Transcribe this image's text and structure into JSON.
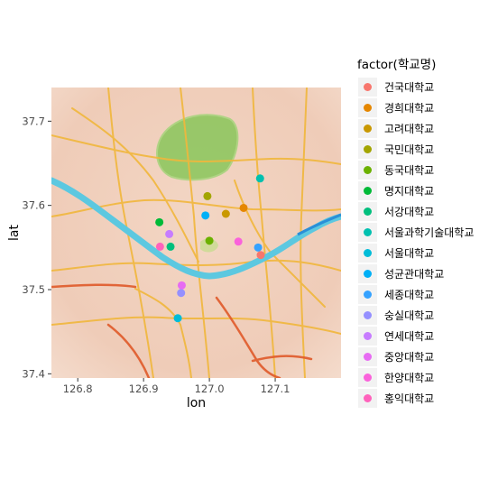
{
  "chart_data": {
    "type": "scatter",
    "basemap": "watercolor",
    "xlabel": "lon",
    "ylabel": "lat",
    "xlim": [
      126.76,
      127.2
    ],
    "ylim": [
      37.395,
      37.74
    ],
    "x_ticks": [
      126.8,
      126.9,
      127.0,
      127.1
    ],
    "x_tick_labels": [
      "126.8",
      "126.9",
      "127.0",
      "127.1"
    ],
    "y_ticks": [
      37.4,
      37.5,
      37.6,
      37.7
    ],
    "y_tick_labels": [
      "37.4",
      "37.5",
      "37.6",
      "37.7"
    ],
    "legend": {
      "title": "factor(학교명)",
      "position": "right"
    },
    "series": [
      {
        "name": "건국대학교",
        "color": "#F8766D",
        "x": 127.078,
        "y": 37.541
      },
      {
        "name": "경희대학교",
        "color": "#E58700",
        "x": 127.052,
        "y": 37.597
      },
      {
        "name": "고려대학교",
        "color": "#C99800",
        "x": 127.025,
        "y": 37.59
      },
      {
        "name": "국민대학교",
        "color": "#A3A500",
        "x": 126.997,
        "y": 37.611
      },
      {
        "name": "동국대학교",
        "color": "#6BB100",
        "x": 127.0,
        "y": 37.558
      },
      {
        "name": "명지대학교",
        "color": "#00BA38",
        "x": 126.924,
        "y": 37.58
      },
      {
        "name": "서강대학교",
        "color": "#00BF7D",
        "x": 126.941,
        "y": 37.551
      },
      {
        "name": "서울과학기술대학교",
        "color": "#00C0AF",
        "x": 127.077,
        "y": 37.632
      },
      {
        "name": "서울대학교",
        "color": "#00BCD8",
        "x": 126.952,
        "y": 37.466
      },
      {
        "name": "성균관대학교",
        "color": "#00B0F6",
        "x": 126.994,
        "y": 37.588
      },
      {
        "name": "세종대학교",
        "color": "#35A2FF",
        "x": 127.074,
        "y": 37.55
      },
      {
        "name": "숭실대학교",
        "color": "#9590FF",
        "x": 126.957,
        "y": 37.496
      },
      {
        "name": "연세대학교",
        "color": "#C77CFF",
        "x": 126.939,
        "y": 37.566
      },
      {
        "name": "중앙대학교",
        "color": "#E76BF3",
        "x": 126.958,
        "y": 37.505
      },
      {
        "name": "한양대학교",
        "color": "#FA62DB",
        "x": 127.044,
        "y": 37.557
      },
      {
        "name": "홍익대학교",
        "color": "#FF62BC",
        "x": 126.925,
        "y": 37.551
      }
    ]
  }
}
